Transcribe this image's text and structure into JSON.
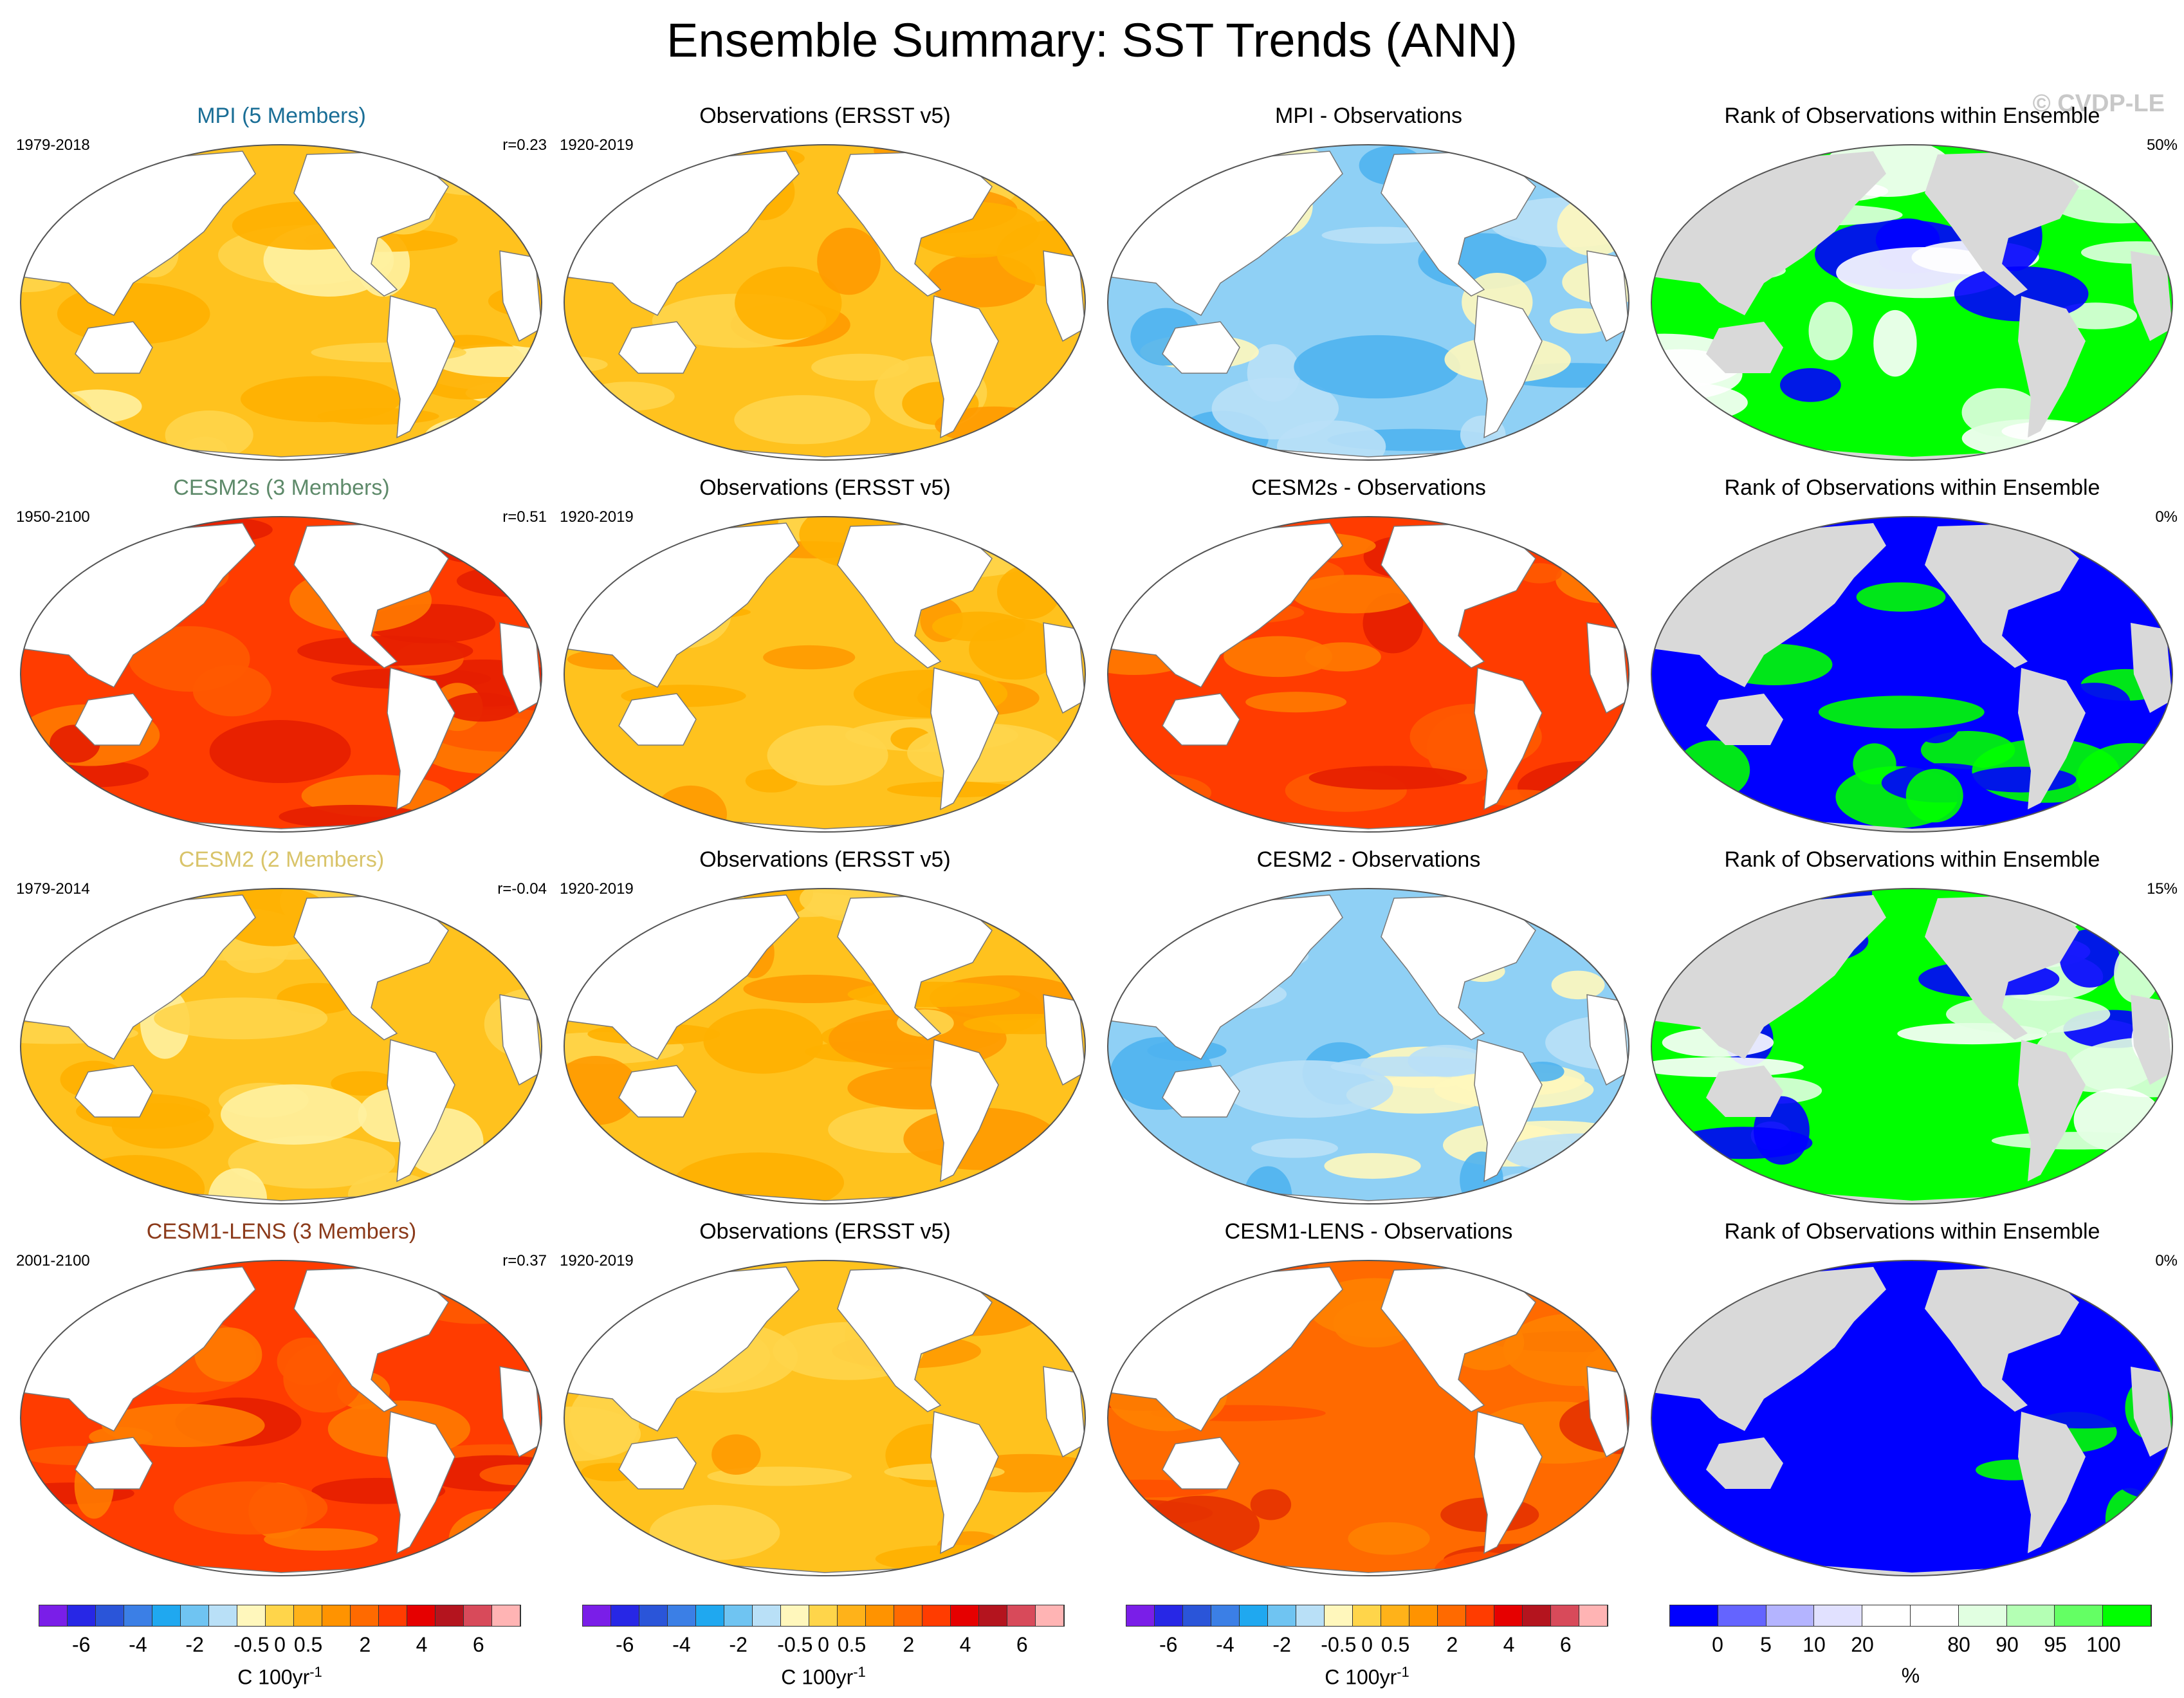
{
  "title": "Ensemble Summary: SST Trends (ANN)",
  "watermark": "© CVDP-LE",
  "rows": [
    {
      "model": {
        "title": "MPI (5 Members)",
        "title_color": "#1a6e96",
        "period": "1979-2018",
        "r": "r=0.23",
        "field": "warm_mixed"
      },
      "obs": {
        "title": "Observations (ERSST v5)",
        "period": "1920-2019",
        "field": "warm"
      },
      "diff": {
        "title": "MPI - Observations",
        "field": "cool"
      },
      "rank": {
        "title": "Rank of Observations within Ensemble",
        "pct": "50%",
        "field": "rank_green"
      }
    },
    {
      "model": {
        "title": "CESM2s (3 Members)",
        "title_color": "#5e8a6a",
        "period": "1950-2100",
        "r": "r=0.51",
        "field": "hot"
      },
      "obs": {
        "title": "Observations (ERSST v5)",
        "period": "1920-2019",
        "field": "warm"
      },
      "diff": {
        "title": "CESM2s - Observations",
        "field": "hot"
      },
      "rank": {
        "title": "Rank of Observations within Ensemble",
        "pct": "0%",
        "field": "rank_blue"
      }
    },
    {
      "model": {
        "title": "CESM2 (2 Members)",
        "title_color": "#d9c46a",
        "period": "1979-2014",
        "r": "r=-0.04",
        "field": "warm_mixed"
      },
      "obs": {
        "title": "Observations (ERSST v5)",
        "period": "1920-2019",
        "field": "warm"
      },
      "diff": {
        "title": "CESM2 - Observations",
        "field": "cool"
      },
      "rank": {
        "title": "Rank of Observations within Ensemble",
        "pct": "15%",
        "field": "rank_green"
      }
    },
    {
      "model": {
        "title": "CESM1-LENS (3 Members)",
        "title_color": "#8b3a1a",
        "period": "2001-2100",
        "r": "r=0.37",
        "field": "hot"
      },
      "obs": {
        "title": "Observations (ERSST v5)",
        "period": "1920-2019",
        "field": "warm"
      },
      "diff": {
        "title": "CESM1-LENS - Observations",
        "field": "hot_orange"
      },
      "rank": {
        "title": "Rank of Observations within Ensemble",
        "pct": "0%",
        "field": "rank_blue"
      }
    }
  ],
  "colorbars": {
    "sst": {
      "colors": [
        "#7a1ee8",
        "#2727e6",
        "#2a55d9",
        "#3b7fe6",
        "#1fa8f0",
        "#6fc4f2",
        "#b9e0f7",
        "#fff7bc",
        "#ffd54a",
        "#ffb219",
        "#ff9300",
        "#ff6a00",
        "#ff3c00",
        "#e60000",
        "#b4141e",
        "#d84a5a",
        "#ffb4b4"
      ],
      "ticks": [
        "-6",
        "-4",
        "-2",
        "-0.5",
        "0",
        "0.5",
        "2",
        "4",
        "6"
      ],
      "unit_main": "C 100yr",
      "unit_sup": "-1"
    },
    "rank": {
      "colors": [
        "#0000ff",
        "#6464ff",
        "#b4b4ff",
        "#e1e1ff",
        "#ffffff",
        "#ffffff",
        "#e1ffe1",
        "#b4ffb4",
        "#64ff64",
        "#00ff00"
      ],
      "ticks": [
        "0",
        "5",
        "10",
        "20",
        "80",
        "90",
        "95",
        "100"
      ],
      "unit_main": "%"
    }
  },
  "land_color": "#d9d9d9",
  "ocean_colors": {
    "warm": [
      "#ffc21e",
      "#ffb000",
      "#ff9a00",
      "#ffd54a"
    ],
    "warm_mixed": [
      "#ffc21e",
      "#ffd54a",
      "#ffb000",
      "#fff1a0"
    ],
    "hot": [
      "#ff3c00",
      "#ff5a00",
      "#e61e00",
      "#ff7a00"
    ],
    "hot_orange": [
      "#ff6a00",
      "#ff5000",
      "#ff8200",
      "#e63200"
    ],
    "cool": [
      "#8fd0f5",
      "#4fb3ef",
      "#b9e0f7",
      "#fff7bc"
    ],
    "rank_green": [
      "#00ff00",
      "#ffffff",
      "#0000ff",
      "#e1ffe1"
    ],
    "rank_blue": [
      "#0000ff",
      "#0000ff",
      "#0000ff",
      "#00ff00"
    ]
  }
}
